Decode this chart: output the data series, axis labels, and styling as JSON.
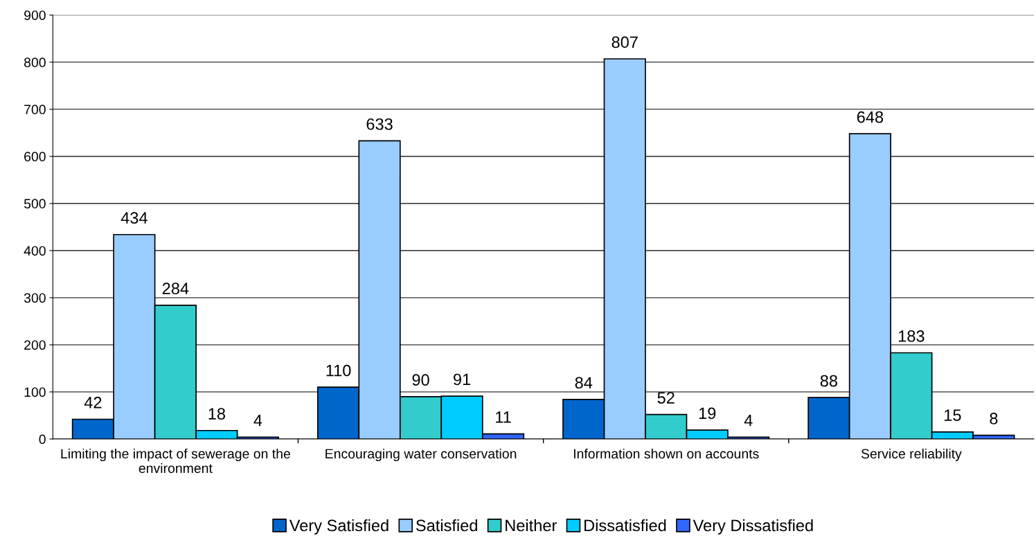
{
  "chart_data": {
    "type": "bar",
    "categories": [
      "Limiting the impact of sewerage on the environment",
      "Encouraging water conservation",
      "Information shown on accounts",
      "Service reliability"
    ],
    "series": [
      {
        "name": "Very Satisfied",
        "color": "#0066cc",
        "values": [
          42,
          110,
          84,
          88
        ]
      },
      {
        "name": "Satisfied",
        "color": "#99ccff",
        "values": [
          434,
          633,
          807,
          648
        ]
      },
      {
        "name": "Neither",
        "color": "#33cccc",
        "values": [
          284,
          90,
          52,
          183
        ]
      },
      {
        "name": "Dissatisfied",
        "color": "#00ccff",
        "values": [
          18,
          91,
          19,
          15
        ]
      },
      {
        "name": "Very Dissatisfied",
        "color": "#3366ff",
        "values": [
          4,
          11,
          4,
          8
        ]
      }
    ],
    "ylim": [
      0,
      900
    ],
    "yticks": [
      0,
      100,
      200,
      300,
      400,
      500,
      600,
      700,
      800,
      900
    ],
    "grid": "y",
    "legend": "bottom",
    "data_labels": true
  }
}
